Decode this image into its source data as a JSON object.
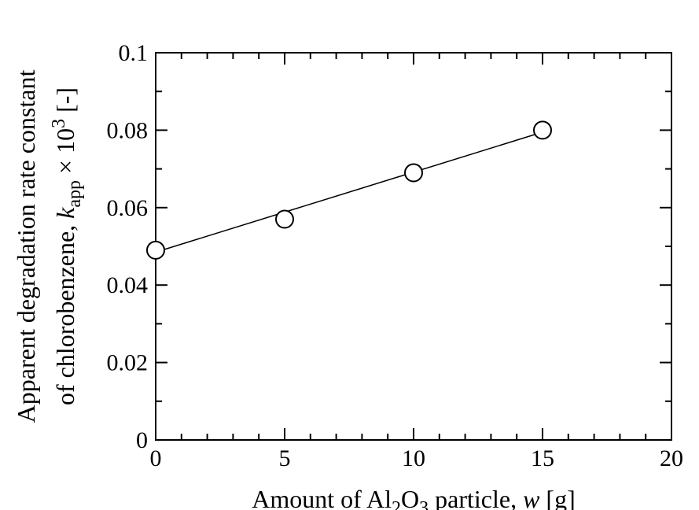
{
  "chart_data": {
    "type": "scatter",
    "x": [
      0,
      5,
      10,
      15
    ],
    "y": [
      0.049,
      0.057,
      0.069,
      0.08
    ],
    "fit_line": {
      "x": [
        0,
        15
      ],
      "y": [
        0.0485,
        0.0795
      ]
    },
    "xlim": [
      0,
      20
    ],
    "ylim": [
      0,
      0.1
    ],
    "x_ticks": [
      0,
      5,
      10,
      15,
      20
    ],
    "x_tick_labels": [
      "0",
      "5",
      "10",
      "15",
      "20"
    ],
    "y_ticks": [
      0,
      0.02,
      0.04,
      0.06,
      0.08,
      0.1
    ],
    "y_tick_labels": [
      "0",
      "0.02",
      "0.04",
      "0.06",
      "0.08",
      "0.1"
    ],
    "xlabel": {
      "prefix": "Amount of Al",
      "sub1": "2",
      "mid": "O",
      "sub2": "3",
      "suffix": " particle, ",
      "var": "w",
      "unit": " [g]"
    },
    "ylabel": {
      "line1": "Apparent degradation rate constant",
      "line2_prefix": "of chlorobenzene, ",
      "line2_var": "k",
      "line2_sub": "app",
      "line2_times": " × 10",
      "line2_sup": "3",
      "line2_unit": " [-]"
    },
    "marker": "open-circle",
    "grid": false,
    "legend": "none"
  }
}
